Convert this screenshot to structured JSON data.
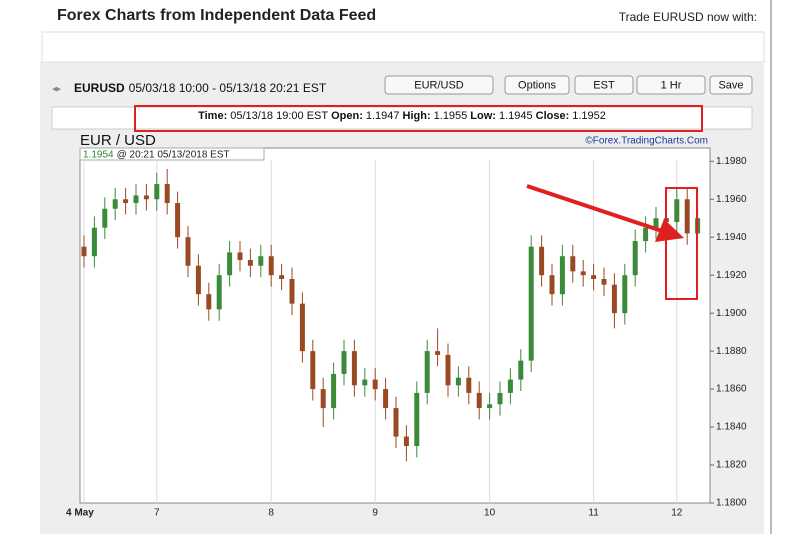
{
  "header": {
    "title": "Forex Charts from Independent Data Feed",
    "trade": "Trade EURUSD now with:"
  },
  "toolbar": {
    "symbol": "EURUSD",
    "range": "05/03/18 10:00 - 05/13/18 20:21 EST",
    "buttons": [
      "EUR/USD",
      "Options",
      "EST",
      "1 Hr",
      "Save"
    ]
  },
  "info": {
    "time_label": "Time:",
    "time": "05/13/18 19:00 EST",
    "open_label": "Open:",
    "open": "1.1947",
    "high_label": "High:",
    "high": "1.1955",
    "low_label": "Low:",
    "low": "1.1945",
    "close_label": "Close:",
    "close": "1.1952"
  },
  "chart_data": {
    "type": "candlestick",
    "title": "EUR / USD",
    "source": "©Forex.TradingCharts.Com",
    "last_value": "1.1954",
    "last_time": "@ 20:21  05/13/2018 EST",
    "up_color": "#3a8a3a",
    "down_color": "#9a4a22",
    "categories": [
      "4 May",
      null,
      null,
      null,
      null,
      null,
      null,
      "7",
      null,
      null,
      null,
      null,
      null,
      null,
      null,
      null,
      null,
      null,
      "8",
      null,
      null,
      null,
      null,
      null,
      null,
      null,
      null,
      null,
      "9",
      null,
      null,
      null,
      null,
      null,
      null,
      null,
      null,
      null,
      null,
      "10",
      null,
      null,
      null,
      null,
      null,
      null,
      null,
      null,
      null,
      "11",
      null,
      null,
      null,
      null,
      null,
      null,
      null,
      "12",
      null,
      null
    ],
    "open": [
      1.1935,
      1.193,
      1.1945,
      1.1955,
      1.196,
      1.1958,
      1.1962,
      1.196,
      1.1968,
      1.1958,
      1.194,
      1.1925,
      1.191,
      1.1902,
      1.192,
      1.1932,
      1.1928,
      1.1925,
      1.193,
      1.192,
      1.1918,
      1.1905,
      1.188,
      1.186,
      1.185,
      1.1868,
      1.188,
      1.1862,
      1.1865,
      1.186,
      1.185,
      1.1835,
      1.183,
      1.1858,
      1.188,
      1.1878,
      1.1862,
      1.1866,
      1.1858,
      1.185,
      1.1852,
      1.1858,
      1.1865,
      1.1875,
      1.1935,
      1.192,
      1.191,
      1.193,
      1.1922,
      1.192,
      1.1918,
      1.1915,
      1.19,
      1.192,
      1.1938,
      1.1945,
      1.195,
      1.1948,
      1.196,
      1.1942
    ],
    "high": [
      1.1941,
      1.1951,
      1.1961,
      1.1966,
      1.1966,
      1.1968,
      1.1968,
      1.1974,
      1.1976,
      1.1964,
      1.1946,
      1.1931,
      1.1916,
      1.1926,
      1.1938,
      1.1938,
      1.1934,
      1.1936,
      1.1936,
      1.1926,
      1.1924,
      1.1911,
      1.1886,
      1.1866,
      1.1874,
      1.1886,
      1.1886,
      1.1871,
      1.1871,
      1.1866,
      1.1856,
      1.1841,
      1.1864,
      1.1886,
      1.1892,
      1.1884,
      1.1872,
      1.1872,
      1.1864,
      1.1858,
      1.1864,
      1.1871,
      1.1881,
      1.1941,
      1.1941,
      1.1926,
      1.1936,
      1.1936,
      1.1928,
      1.1926,
      1.1924,
      1.1921,
      1.1926,
      1.1944,
      1.1951,
      1.1956,
      1.1956,
      1.1966,
      1.1966,
      1.1956
    ],
    "low": [
      1.1924,
      1.1924,
      1.1939,
      1.1949,
      1.1952,
      1.1952,
      1.1954,
      1.1954,
      1.1952,
      1.1934,
      1.1919,
      1.1904,
      1.1896,
      1.1896,
      1.1914,
      1.1922,
      1.1919,
      1.1919,
      1.1914,
      1.1912,
      1.1899,
      1.1874,
      1.1854,
      1.184,
      1.1844,
      1.1862,
      1.1856,
      1.1856,
      1.1854,
      1.1844,
      1.1829,
      1.1822,
      1.1824,
      1.1852,
      1.1872,
      1.1856,
      1.1856,
      1.1852,
      1.1844,
      1.1844,
      1.1846,
      1.1852,
      1.1859,
      1.1869,
      1.1914,
      1.1904,
      1.1904,
      1.1916,
      1.1914,
      1.1912,
      1.1909,
      1.1892,
      1.1894,
      1.1914,
      1.1932,
      1.1939,
      1.1942,
      1.1942,
      1.1936,
      1.1936
    ],
    "close": [
      1.193,
      1.1945,
      1.1955,
      1.196,
      1.1958,
      1.1962,
      1.196,
      1.1968,
      1.1958,
      1.194,
      1.1925,
      1.191,
      1.1902,
      1.192,
      1.1932,
      1.1928,
      1.1925,
      1.193,
      1.192,
      1.1918,
      1.1905,
      1.188,
      1.186,
      1.185,
      1.1868,
      1.188,
      1.1862,
      1.1865,
      1.186,
      1.185,
      1.1835,
      1.183,
      1.1858,
      1.188,
      1.1878,
      1.1862,
      1.1866,
      1.1858,
      1.185,
      1.1852,
      1.1858,
      1.1865,
      1.1875,
      1.1935,
      1.192,
      1.191,
      1.193,
      1.1922,
      1.192,
      1.1918,
      1.1915,
      1.19,
      1.192,
      1.1938,
      1.1945,
      1.195,
      1.1948,
      1.196,
      1.1942,
      1.195
    ],
    "ylim": [
      1.18,
      1.1987
    ],
    "yticks": [
      {
        "value": 1.18,
        "label": "1.1800"
      },
      {
        "value": 1.182,
        "label": "1.1820"
      },
      {
        "value": 1.184,
        "label": "1.1840"
      },
      {
        "value": 1.186,
        "label": "1.1860"
      },
      {
        "value": 1.188,
        "label": "1.1880"
      },
      {
        "value": 1.19,
        "label": "1.1900"
      },
      {
        "value": 1.192,
        "label": "1.1920"
      },
      {
        "value": 1.194,
        "label": "1.1940"
      },
      {
        "value": 1.196,
        "label": "1.1960"
      },
      {
        "value": 1.198,
        "label": "1.1980"
      }
    ]
  }
}
